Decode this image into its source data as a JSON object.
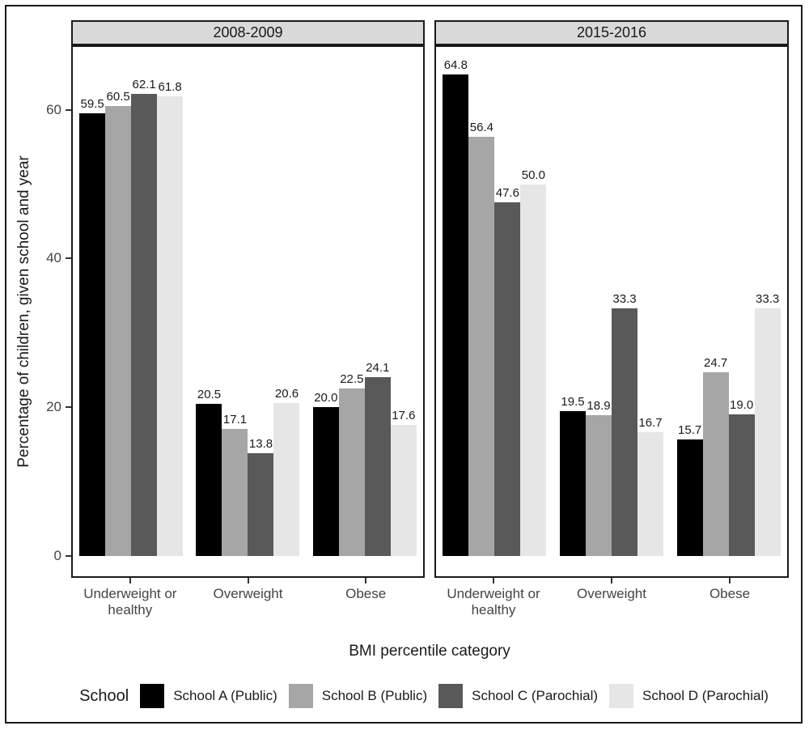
{
  "chart_data": {
    "type": "bar",
    "categories": [
      "Underweight or healthy",
      "Overweight",
      "Obese"
    ],
    "series_defs": [
      {
        "name": "School A (Public)",
        "color": "#000000"
      },
      {
        "name": "School B (Public)",
        "color": "#a6a6a6"
      },
      {
        "name": "School C (Parochial)",
        "color": "#595959"
      },
      {
        "name": "School D (Parochial)",
        "color": "#e6e6e6"
      }
    ],
    "facets": [
      {
        "label": "2008-2009",
        "values": [
          [
            59.5,
            20.5,
            20.0
          ],
          [
            60.5,
            17.1,
            22.5
          ],
          [
            62.1,
            13.8,
            24.1
          ],
          [
            61.8,
            20.6,
            17.6
          ]
        ]
      },
      {
        "label": "2015-2016",
        "values": [
          [
            64.8,
            19.5,
            15.7
          ],
          [
            56.4,
            18.9,
            24.7
          ],
          [
            47.6,
            33.3,
            19.0
          ],
          [
            50.0,
            16.7,
            33.3
          ]
        ]
      }
    ],
    "xlabel": "BMI percentile category",
    "ylabel": "Percentage of children, given school and year",
    "yticks": [
      0,
      20,
      40,
      60
    ],
    "ylim": [
      0,
      68.5
    ],
    "value_label_decimals": 1,
    "grid": "off",
    "legend": {
      "title": "School",
      "position": "bottom"
    },
    "strip_background": "#d9d9d9",
    "border_color": "#1a1a1a"
  }
}
